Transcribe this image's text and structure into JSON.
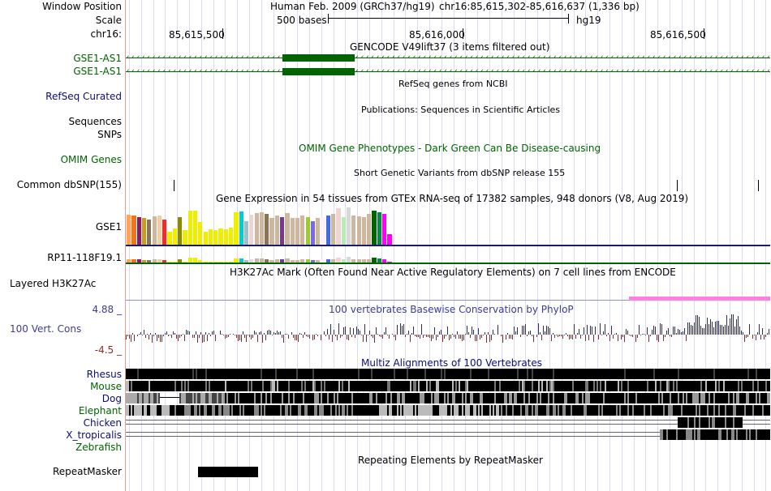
{
  "header": {
    "window_label": "Window Position",
    "scale_label": "Scale",
    "chrom_label": "chr16:",
    "assembly_text": "Human Feb. 2009 (GRCh37/hg19)",
    "position_text": "chr16:85,615,302-85,616,637 (1,336 bp)",
    "scale_text": "500 bases",
    "db_text": "hg19",
    "ticks": [
      "85,615,500",
      "85,616,000",
      "85,616,500"
    ]
  },
  "tracks": {
    "gencode": {
      "title": "GENCODE V49lift37 (3 items filtered out)",
      "items": [
        "GSE1-AS1",
        "GSE1-AS1"
      ],
      "color": "#006400"
    },
    "refseq": {
      "title": "RefSeq genes from NCBI",
      "label": "RefSeq Curated",
      "color": "#0c0c78"
    },
    "publications": {
      "title": "Publications: Sequences in Scientific Articles",
      "labels": [
        "Sequences",
        "SNPs"
      ]
    },
    "omim": {
      "title": "OMIM Gene Phenotypes - Dark Green Can Be Disease-causing",
      "label": "OMIM Genes",
      "color": "#006400"
    },
    "dbsnp": {
      "title": "Short Genetic Variants from dbSNP release 155",
      "label": "Common dbSNP(155)"
    },
    "gtex": {
      "title": "Gene Expression in 54 tissues from GTEx RNA-seq of 17382 samples, 948 donors (V8, Aug 2019)",
      "genes": [
        "GSE1",
        "RP11-118F19.1"
      ],
      "line_colors": [
        "#1a1a6e",
        "#006400"
      ],
      "tissue_levels": [
        0.78,
        0.76,
        0.72,
        0.7,
        0.66,
        0.74,
        0.76,
        0.65,
        0.35,
        0.42,
        0.72,
        0.38,
        0.9,
        0.9,
        0.6,
        0.35,
        0.4,
        0.38,
        0.42,
        0.4,
        0.45,
        0.85,
        0.88,
        0.62,
        0.78,
        0.82,
        0.85,
        0.8,
        0.7,
        0.76,
        0.72,
        0.82,
        0.7,
        0.7,
        0.76,
        0.72,
        0.62,
        0.7,
        0.72,
        0.76,
        0.8,
        0.95,
        0.72,
        0.98,
        0.76,
        0.74,
        0.72,
        0.8,
        0.9,
        0.86,
        0.8,
        0.28
      ],
      "tissue_colors": [
        "#ffa54f",
        "#ee7621",
        "#8b1c62",
        "#cd9b1d",
        "#8b7355",
        "#cdb79e",
        "#eecfa1",
        "#ee2c2c",
        "#eeee00",
        "#eeee00",
        "#8b8b00",
        "#eeee00",
        "#eeee00",
        "#eeee00",
        "#eeee00",
        "#eeee00",
        "#eeee00",
        "#eeee00",
        "#eeee00",
        "#eeee00",
        "#eeee00",
        "#eeee00",
        "#00cdcd",
        "#9ac0cd",
        "#eed5d2",
        "#cdb79e",
        "#cdb79e",
        "#8b7355",
        "#cdb79e",
        "#cdb79e",
        "#7a378b",
        "#cdb79e",
        "#cdb79e",
        "#cdb79e",
        "#cdb79e",
        "#9acd32",
        "#7a67ee",
        "#cdb79e",
        "#fff0f5",
        "#4169e1",
        "#cdb79e",
        "#eed5d2",
        "#b4eeb4",
        "#d9d9d9",
        "#cdb79e",
        "#cdb79e",
        "#cdb79e",
        "#cdb79e",
        "#006400",
        "#008b45",
        "#ff00ff",
        "#ff00ff"
      ]
    },
    "h3k27ac": {
      "title": "H3K27Ac Mark (Often Found Near Active Regulatory Elements) on 7 cell lines from ENCODE",
      "label": "Layered H3K27Ac"
    },
    "conservation": {
      "title": "100 vertebrates Basewise Conservation by PhyloP",
      "label": "100 Vert. Cons",
      "max_label": "4.88 _",
      "min_label": "-4.5 _",
      "color": "#3c3c96"
    },
    "multiz": {
      "title": "Multiz Alignments of 100 Vertebrates",
      "species": [
        "Rhesus",
        "Mouse",
        "Dog",
        "Elephant",
        "Chicken",
        "X_tropicalis",
        "Zebrafish"
      ],
      "label_colors": [
        "#0c0c78",
        "#006400"
      ]
    },
    "repeatmasker": {
      "title": "Repeating Elements by RepeatMasker",
      "label": "RepeatMasker"
    }
  }
}
